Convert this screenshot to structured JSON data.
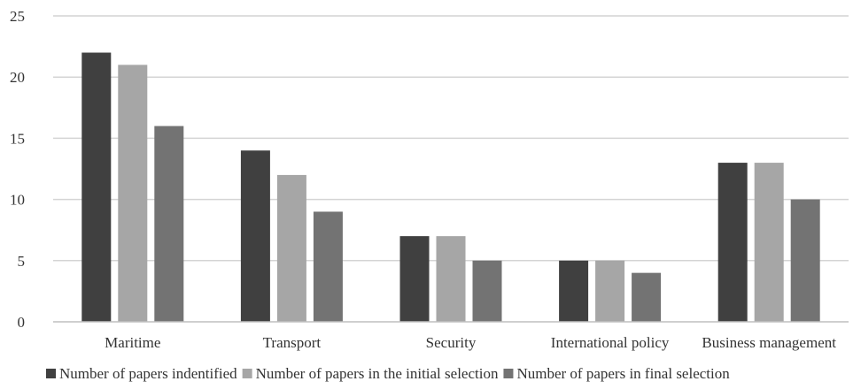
{
  "chart_data": {
    "type": "bar",
    "title": "",
    "xlabel": "",
    "ylabel": "",
    "categories": [
      "Maritime",
      "Transport",
      "Security",
      "International policy",
      "Business management"
    ],
    "series": [
      {
        "name": "Number of papers indentified",
        "values": [
          22,
          14,
          7,
          5,
          13
        ],
        "color": "#404040"
      },
      {
        "name": "Number of papers in the initial selection",
        "values": [
          21,
          12,
          7,
          5,
          13
        ],
        "color": "#a6a6a6"
      },
      {
        "name": "Number of papers in final selection",
        "values": [
          16,
          9,
          5,
          4,
          10
        ],
        "color": "#737373"
      }
    ],
    "ylim": [
      0,
      25
    ],
    "yticks": [
      "0",
      "5",
      "10",
      "15",
      "20",
      "25"
    ],
    "grid": "horizontal",
    "legend": "bottom"
  }
}
